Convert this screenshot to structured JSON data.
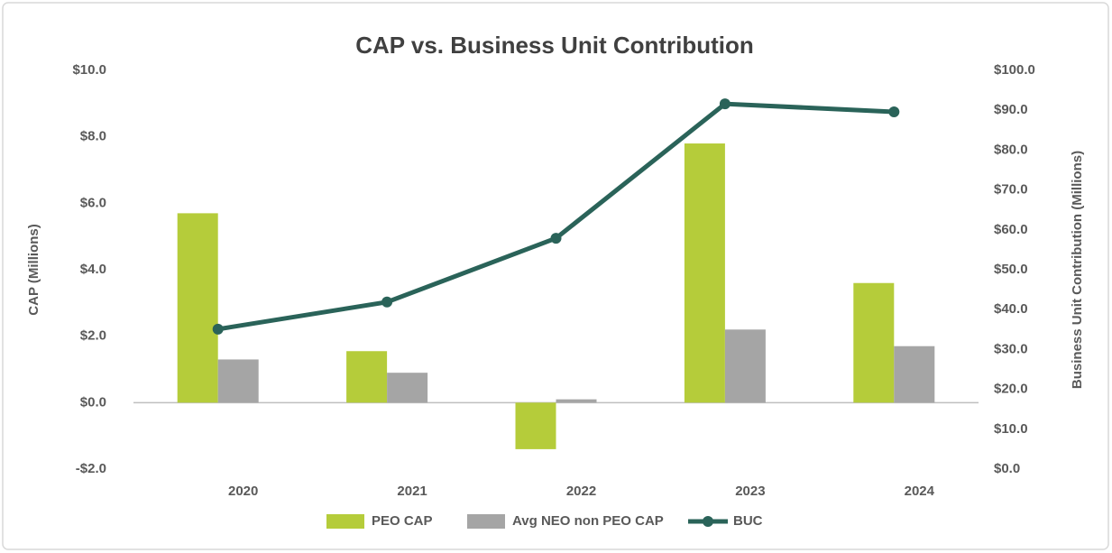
{
  "chart_data": {
    "type": "bar",
    "title": "CAP vs. Business Unit Contribution",
    "y_label": "CAP (Millions)",
    "y2_label": "Business Unit Contribution (Millions)",
    "categories": [
      "2020",
      "2021",
      "2022",
      "2023",
      "2024"
    ],
    "series": [
      {
        "name": "PEO CAP",
        "type": "bar",
        "color": "#b5cc3a",
        "values": [
          5.7,
          1.55,
          -1.4,
          7.8,
          3.6
        ]
      },
      {
        "name": "Avg NEO non PEO CAP",
        "type": "bar",
        "color": "#a5a5a5",
        "values": [
          1.3,
          0.9,
          0.1,
          2.2,
          1.7
        ]
      },
      {
        "name": "BUC",
        "type": "line",
        "axis": "y2",
        "color": "#2a6359",
        "values": [
          35.1,
          41.9,
          57.9,
          91.6,
          89.6
        ]
      }
    ],
    "ylim": [
      -2,
      10
    ],
    "yticks": [
      {
        "value": -2,
        "label": "-$2.0"
      },
      {
        "value": 0,
        "label": "$0.0"
      },
      {
        "value": 2,
        "label": "$2.0"
      },
      {
        "value": 4,
        "label": "$4.0"
      },
      {
        "value": 6,
        "label": "$6.0"
      },
      {
        "value": 8,
        "label": "$8.0"
      },
      {
        "value": 10,
        "label": "$10.0"
      }
    ],
    "y2lim": [
      0,
      100
    ],
    "y2ticks": [
      {
        "value": 0,
        "label": "$0.0"
      },
      {
        "value": 10,
        "label": "$10.0"
      },
      {
        "value": 20,
        "label": "$20.0"
      },
      {
        "value": 30,
        "label": "$30.0"
      },
      {
        "value": 40,
        "label": "$40.0"
      },
      {
        "value": 50,
        "label": "$50.0"
      },
      {
        "value": 60,
        "label": "$60.0"
      },
      {
        "value": 70,
        "label": "$70.0"
      },
      {
        "value": 80,
        "label": "$80.0"
      },
      {
        "value": 90,
        "label": "$90.0"
      },
      {
        "value": 100,
        "label": "$100.0"
      }
    ],
    "grid": false
  }
}
